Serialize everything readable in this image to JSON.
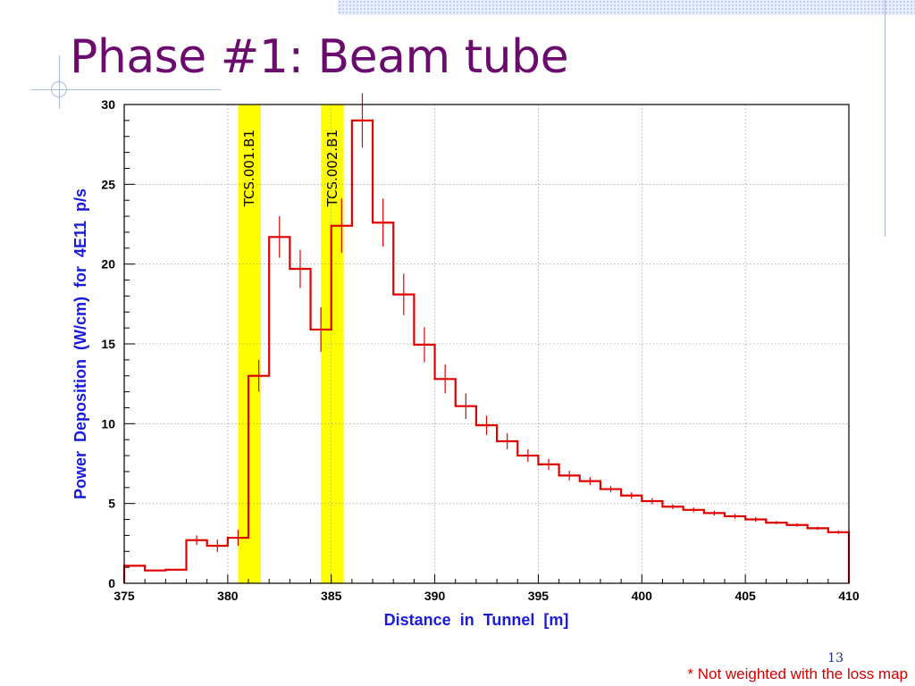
{
  "slide": {
    "title": "Phase #1: Beam tube",
    "page_number": "13",
    "footnote": "* Not weighted with the loss map"
  },
  "colors": {
    "title": "#6b0b6e",
    "axis_label": "#1a1adc",
    "histogram": "#e00000",
    "highlight": "#ffff00"
  },
  "chart_data": {
    "type": "histogram",
    "xlabel": "Distance  in  Tunnel  [m]",
    "ylabel": "Power  Deposition  (W/cm)  for  4E11  p/s",
    "xlim": [
      375,
      410
    ],
    "ylim": [
      0,
      30
    ],
    "xticks": [
      375,
      380,
      385,
      390,
      395,
      400,
      405,
      410
    ],
    "yticks": [
      0,
      5,
      10,
      15,
      20,
      25,
      30
    ],
    "grid": true,
    "highlight_bands": [
      {
        "label": "TCS.001.B1",
        "x0": 380.5,
        "x1": 381.6
      },
      {
        "label": "TCS.002.B1",
        "x0": 384.5,
        "x1": 385.6
      }
    ],
    "bins": [
      {
        "x0": 375.0,
        "x1": 376.0,
        "y": 1.1,
        "err": 0.0
      },
      {
        "x0": 376.0,
        "x1": 377.0,
        "y": 0.8,
        "err": 0.0
      },
      {
        "x0": 377.0,
        "x1": 378.0,
        "y": 0.85,
        "err": 0.0
      },
      {
        "x0": 378.0,
        "x1": 379.0,
        "y": 2.7,
        "err": 0.3
      },
      {
        "x0": 379.0,
        "x1": 380.0,
        "y": 2.35,
        "err": 0.4
      },
      {
        "x0": 380.0,
        "x1": 381.0,
        "y": 2.85,
        "err": 0.5
      },
      {
        "x0": 381.0,
        "x1": 382.0,
        "y": 13.0,
        "err": 1.0
      },
      {
        "x0": 382.0,
        "x1": 383.0,
        "y": 21.7,
        "err": 1.3
      },
      {
        "x0": 383.0,
        "x1": 384.0,
        "y": 19.7,
        "err": 1.2
      },
      {
        "x0": 384.0,
        "x1": 385.0,
        "y": 15.9,
        "err": 1.4
      },
      {
        "x0": 385.0,
        "x1": 386.0,
        "y": 22.4,
        "err": 1.7
      },
      {
        "x0": 386.0,
        "x1": 387.0,
        "y": 29.0,
        "err": 1.7
      },
      {
        "x0": 387.0,
        "x1": 388.0,
        "y": 22.6,
        "err": 1.5
      },
      {
        "x0": 388.0,
        "x1": 389.0,
        "y": 18.1,
        "err": 1.3
      },
      {
        "x0": 389.0,
        "x1": 390.0,
        "y": 14.95,
        "err": 1.1
      },
      {
        "x0": 390.0,
        "x1": 391.0,
        "y": 12.8,
        "err": 0.9
      },
      {
        "x0": 391.0,
        "x1": 392.0,
        "y": 11.1,
        "err": 0.8
      },
      {
        "x0": 392.0,
        "x1": 393.0,
        "y": 9.9,
        "err": 0.6
      },
      {
        "x0": 393.0,
        "x1": 394.0,
        "y": 8.9,
        "err": 0.5
      },
      {
        "x0": 394.0,
        "x1": 395.0,
        "y": 8.0,
        "err": 0.4
      },
      {
        "x0": 395.0,
        "x1": 396.0,
        "y": 7.45,
        "err": 0.35
      },
      {
        "x0": 396.0,
        "x1": 397.0,
        "y": 6.75,
        "err": 0.3
      },
      {
        "x0": 397.0,
        "x1": 398.0,
        "y": 6.4,
        "err": 0.25
      },
      {
        "x0": 398.0,
        "x1": 399.0,
        "y": 5.9,
        "err": 0.2
      },
      {
        "x0": 399.0,
        "x1": 400.0,
        "y": 5.5,
        "err": 0.2
      },
      {
        "x0": 400.0,
        "x1": 401.0,
        "y": 5.15,
        "err": 0.2
      },
      {
        "x0": 401.0,
        "x1": 402.0,
        "y": 4.8,
        "err": 0.15
      },
      {
        "x0": 402.0,
        "x1": 403.0,
        "y": 4.6,
        "err": 0.15
      },
      {
        "x0": 403.0,
        "x1": 404.0,
        "y": 4.4,
        "err": 0.15
      },
      {
        "x0": 404.0,
        "x1": 405.0,
        "y": 4.2,
        "err": 0.15
      },
      {
        "x0": 405.0,
        "x1": 406.0,
        "y": 4.0,
        "err": 0.15
      },
      {
        "x0": 406.0,
        "x1": 407.0,
        "y": 3.8,
        "err": 0.1
      },
      {
        "x0": 407.0,
        "x1": 408.0,
        "y": 3.65,
        "err": 0.1
      },
      {
        "x0": 408.0,
        "x1": 409.0,
        "y": 3.45,
        "err": 0.1
      },
      {
        "x0": 409.0,
        "x1": 410.0,
        "y": 3.2,
        "err": 0.1
      }
    ]
  }
}
